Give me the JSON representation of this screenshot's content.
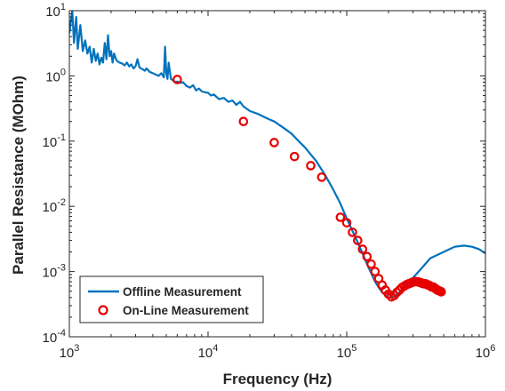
{
  "chart_data": {
    "type": "line",
    "title": "",
    "xlabel": "Frequency (Hz)",
    "ylabel": "Parallel Resistance (MOhm)",
    "xscale": "log",
    "yscale": "log",
    "xlim": [
      1000,
      1000000
    ],
    "ylim": [
      0.0001,
      10
    ],
    "grid": false,
    "legend_position": "bottom-left",
    "x_ticks": [
      {
        "value": 1000,
        "base": "10",
        "exp": "3"
      },
      {
        "value": 10000,
        "base": "10",
        "exp": "4"
      },
      {
        "value": 100000,
        "base": "10",
        "exp": "5"
      },
      {
        "value": 1000000,
        "base": "10",
        "exp": "6"
      }
    ],
    "y_ticks": [
      {
        "value": 0.0001,
        "base": "10",
        "exp": "-4"
      },
      {
        "value": 0.001,
        "base": "10",
        "exp": "-3"
      },
      {
        "value": 0.01,
        "base": "10",
        "exp": "-2"
      },
      {
        "value": 0.1,
        "base": "10",
        "exp": "-1"
      },
      {
        "value": 1,
        "base": "10",
        "exp": "0"
      },
      {
        "value": 10,
        "base": "10",
        "exp": "1"
      }
    ],
    "series": [
      {
        "name": "Offline Measurement",
        "style": "line",
        "color": "#0072BD",
        "x": [
          1000,
          1050,
          1080,
          1120,
          1150,
          1200,
          1250,
          1300,
          1350,
          1400,
          1450,
          1500,
          1550,
          1600,
          1650,
          1700,
          1750,
          1800,
          1850,
          1900,
          1950,
          2000,
          2050,
          2100,
          2150,
          2200,
          2300,
          2400,
          2500,
          2600,
          2700,
          2800,
          2900,
          3000,
          3100,
          3200,
          3300,
          3400,
          3500,
          3600,
          3800,
          4000,
          4200,
          4400,
          4600,
          4800,
          4900,
          5000,
          5100,
          5200,
          5400,
          5600,
          5800,
          6000,
          6300,
          6600,
          7000,
          7400,
          7800,
          8200,
          8600,
          9000,
          9500,
          10000,
          10500,
          11000,
          12000,
          13000,
          14000,
          15000,
          16000,
          17000,
          18000,
          20000,
          23000,
          27000,
          30000,
          35000,
          40000,
          45000,
          50000,
          60000,
          70000,
          80000,
          90000,
          100000,
          110000,
          120000,
          130000,
          140000,
          150000,
          160000,
          170000,
          180000,
          190000,
          200000,
          210000,
          220000,
          240000,
          260000,
          300000,
          350000,
          400000,
          500000,
          600000,
          700000,
          800000,
          900000,
          1000000
        ],
        "y": [
          4.5,
          10,
          3.2,
          8,
          2.6,
          6,
          2.4,
          3.5,
          2.2,
          2.8,
          1.6,
          2.6,
          1.7,
          2.2,
          1.5,
          1.9,
          1.6,
          3.2,
          1.8,
          4.2,
          2.0,
          2.4,
          1.6,
          2.2,
          1.9,
          1.7,
          1.6,
          1.55,
          1.45,
          1.6,
          1.4,
          1.5,
          1.3,
          1.4,
          1.8,
          1.35,
          1.3,
          1.25,
          1.2,
          1.3,
          1.15,
          1.1,
          1.05,
          1.0,
          1.1,
          0.95,
          2.8,
          1.1,
          0.9,
          1.6,
          0.9,
          0.85,
          0.8,
          0.82,
          0.78,
          0.8,
          0.7,
          0.66,
          0.72,
          0.6,
          0.64,
          0.58,
          0.56,
          0.55,
          0.5,
          0.52,
          0.44,
          0.46,
          0.4,
          0.42,
          0.36,
          0.4,
          0.34,
          0.29,
          0.26,
          0.22,
          0.2,
          0.16,
          0.13,
          0.1,
          0.08,
          0.05,
          0.03,
          0.018,
          0.011,
          0.0065,
          0.0042,
          0.0028,
          0.0019,
          0.0013,
          0.00095,
          0.0007,
          0.00057,
          0.00048,
          0.00043,
          0.0004,
          0.0004,
          0.00042,
          0.00048,
          0.00057,
          0.0008,
          0.00115,
          0.0016,
          0.002,
          0.0024,
          0.0025,
          0.0024,
          0.0022,
          0.0019
        ]
      },
      {
        "name": "On-Line Measurement",
        "style": "markers",
        "marker": "circle",
        "color": "#e60000",
        "x": [
          6000,
          18000,
          30000,
          42000,
          55000,
          66000,
          90000,
          100000,
          110000,
          120000,
          130000,
          140000,
          150000,
          160000,
          170000,
          180000,
          190000,
          200000,
          210000,
          220000,
          230000,
          240000,
          250000,
          260000,
          270000,
          280000,
          290000,
          300000,
          310000,
          320000,
          330000,
          340000,
          350000,
          360000,
          370000,
          380000,
          390000,
          400000,
          410000,
          420000,
          430000,
          440000,
          450000,
          460000,
          470000,
          480000
        ],
        "y": [
          0.88,
          0.2,
          0.095,
          0.058,
          0.042,
          0.028,
          0.0068,
          0.0056,
          0.004,
          0.003,
          0.0022,
          0.0017,
          0.0013,
          0.001,
          0.00078,
          0.00062,
          0.00052,
          0.00045,
          0.00041,
          0.00043,
          0.00048,
          0.00052,
          0.00057,
          0.0006,
          0.00063,
          0.00065,
          0.00067,
          0.00069,
          0.0007,
          0.0007,
          0.00069,
          0.00068,
          0.00066,
          0.00065,
          0.00065,
          0.00063,
          0.00062,
          0.0006,
          0.00058,
          0.00058,
          0.00056,
          0.00054,
          0.00052,
          0.00051,
          0.0005,
          0.00049
        ]
      }
    ]
  }
}
